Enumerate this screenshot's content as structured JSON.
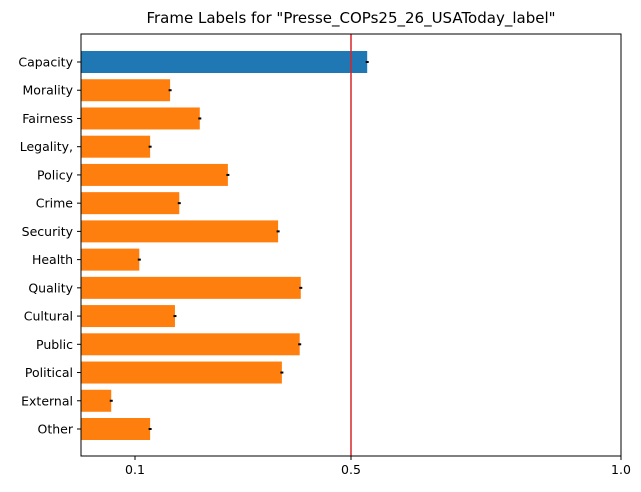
{
  "chart_data": {
    "type": "bar",
    "orientation": "horizontal",
    "title": "Frame Labels for \"Presse_COPs25_26_USAToday_label\"",
    "xlabel": "",
    "ylabel": "",
    "xlim": [
      0.0,
      1.0
    ],
    "xticks": [
      0.1,
      0.5,
      1.0
    ],
    "xtick_labels": [
      "0.1",
      "0.5",
      "1.0"
    ],
    "categories": [
      "Capacity",
      "Morality",
      "Fairness",
      "Legality,",
      "Policy",
      "Crime",
      "Security",
      "Health",
      "Quality",
      "Cultural",
      "Public",
      "Political",
      "External",
      "Other"
    ],
    "values": [
      0.53,
      0.165,
      0.22,
      0.128,
      0.272,
      0.182,
      0.365,
      0.108,
      0.407,
      0.174,
      0.405,
      0.372,
      0.056,
      0.128
    ],
    "highlight_index": 0,
    "highlight_color": "#1f77b4",
    "bar_color": "#ff7f0e",
    "reference_line": {
      "x": 0.5,
      "color": "#d62728"
    },
    "error_bar_color": "#000000",
    "grid": false,
    "legend": "none"
  }
}
